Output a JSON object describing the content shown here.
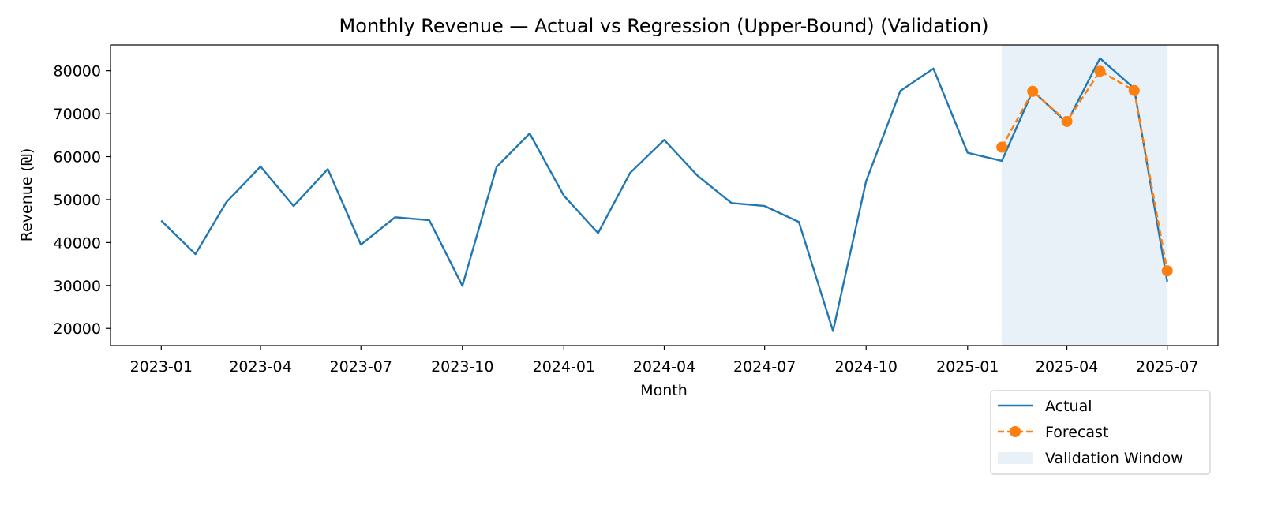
{
  "chart_data": {
    "type": "line",
    "title": "Monthly Revenue — Actual vs Regression (Upper-Bound) (Validation)",
    "xlabel": "Month",
    "ylabel": "Revenue (₪)",
    "ylim": [
      16000,
      86000
    ],
    "xlim": [
      "2022-11-16",
      "2025-08-16"
    ],
    "x_ticks": [
      "2023-01",
      "2023-04",
      "2023-07",
      "2023-10",
      "2024-01",
      "2024-04",
      "2024-07",
      "2024-10",
      "2025-01",
      "2025-04",
      "2025-07"
    ],
    "y_ticks": [
      20000,
      30000,
      40000,
      50000,
      60000,
      70000,
      80000
    ],
    "grid": false,
    "legend_position": "bottom-right, outside plot",
    "series": [
      {
        "name": "Actual",
        "style": "solid line",
        "color": "#1f77b4",
        "points": [
          [
            "2023-01",
            45100
          ],
          [
            "2023-02",
            37300
          ],
          [
            "2023-03",
            49400
          ],
          [
            "2023-04",
            57700
          ],
          [
            "2023-05",
            48500
          ],
          [
            "2023-06",
            57100
          ],
          [
            "2023-07",
            39500
          ],
          [
            "2023-08",
            45900
          ],
          [
            "2023-09",
            45200
          ],
          [
            "2023-10",
            29900
          ],
          [
            "2023-11",
            57600
          ],
          [
            "2023-12",
            65400
          ],
          [
            "2024-01",
            50900
          ],
          [
            "2024-02",
            42200
          ],
          [
            "2024-03",
            56200
          ],
          [
            "2024-04",
            63900
          ],
          [
            "2024-05",
            55600
          ],
          [
            "2024-06",
            49200
          ],
          [
            "2024-07",
            48500
          ],
          [
            "2024-08",
            44800
          ],
          [
            "2024-09",
            19400
          ],
          [
            "2024-10",
            54300
          ],
          [
            "2024-11",
            75300
          ],
          [
            "2024-12",
            80500
          ],
          [
            "2025-01",
            60900
          ],
          [
            "2025-02",
            59000
          ],
          [
            "2025-03",
            75300
          ],
          [
            "2025-04",
            67900
          ],
          [
            "2025-05",
            82900
          ],
          [
            "2025-06",
            75900
          ],
          [
            "2025-07",
            30900
          ]
        ]
      },
      {
        "name": "Forecast",
        "style": "dashed line with circle markers",
        "color": "#ff7f0e",
        "points": [
          [
            "2025-02",
            62200
          ],
          [
            "2025-03",
            75200
          ],
          [
            "2025-04",
            68200
          ],
          [
            "2025-05",
            79900
          ],
          [
            "2025-06",
            75400
          ],
          [
            "2025-07",
            33400
          ]
        ]
      }
    ],
    "shaded_regions": [
      {
        "name": "Validation Window",
        "x_start": "2025-02",
        "x_end": "2025-07",
        "color": "#1f77b4",
        "opacity": 0.1
      }
    ],
    "legend": [
      "Actual",
      "Forecast",
      "Validation Window"
    ]
  }
}
